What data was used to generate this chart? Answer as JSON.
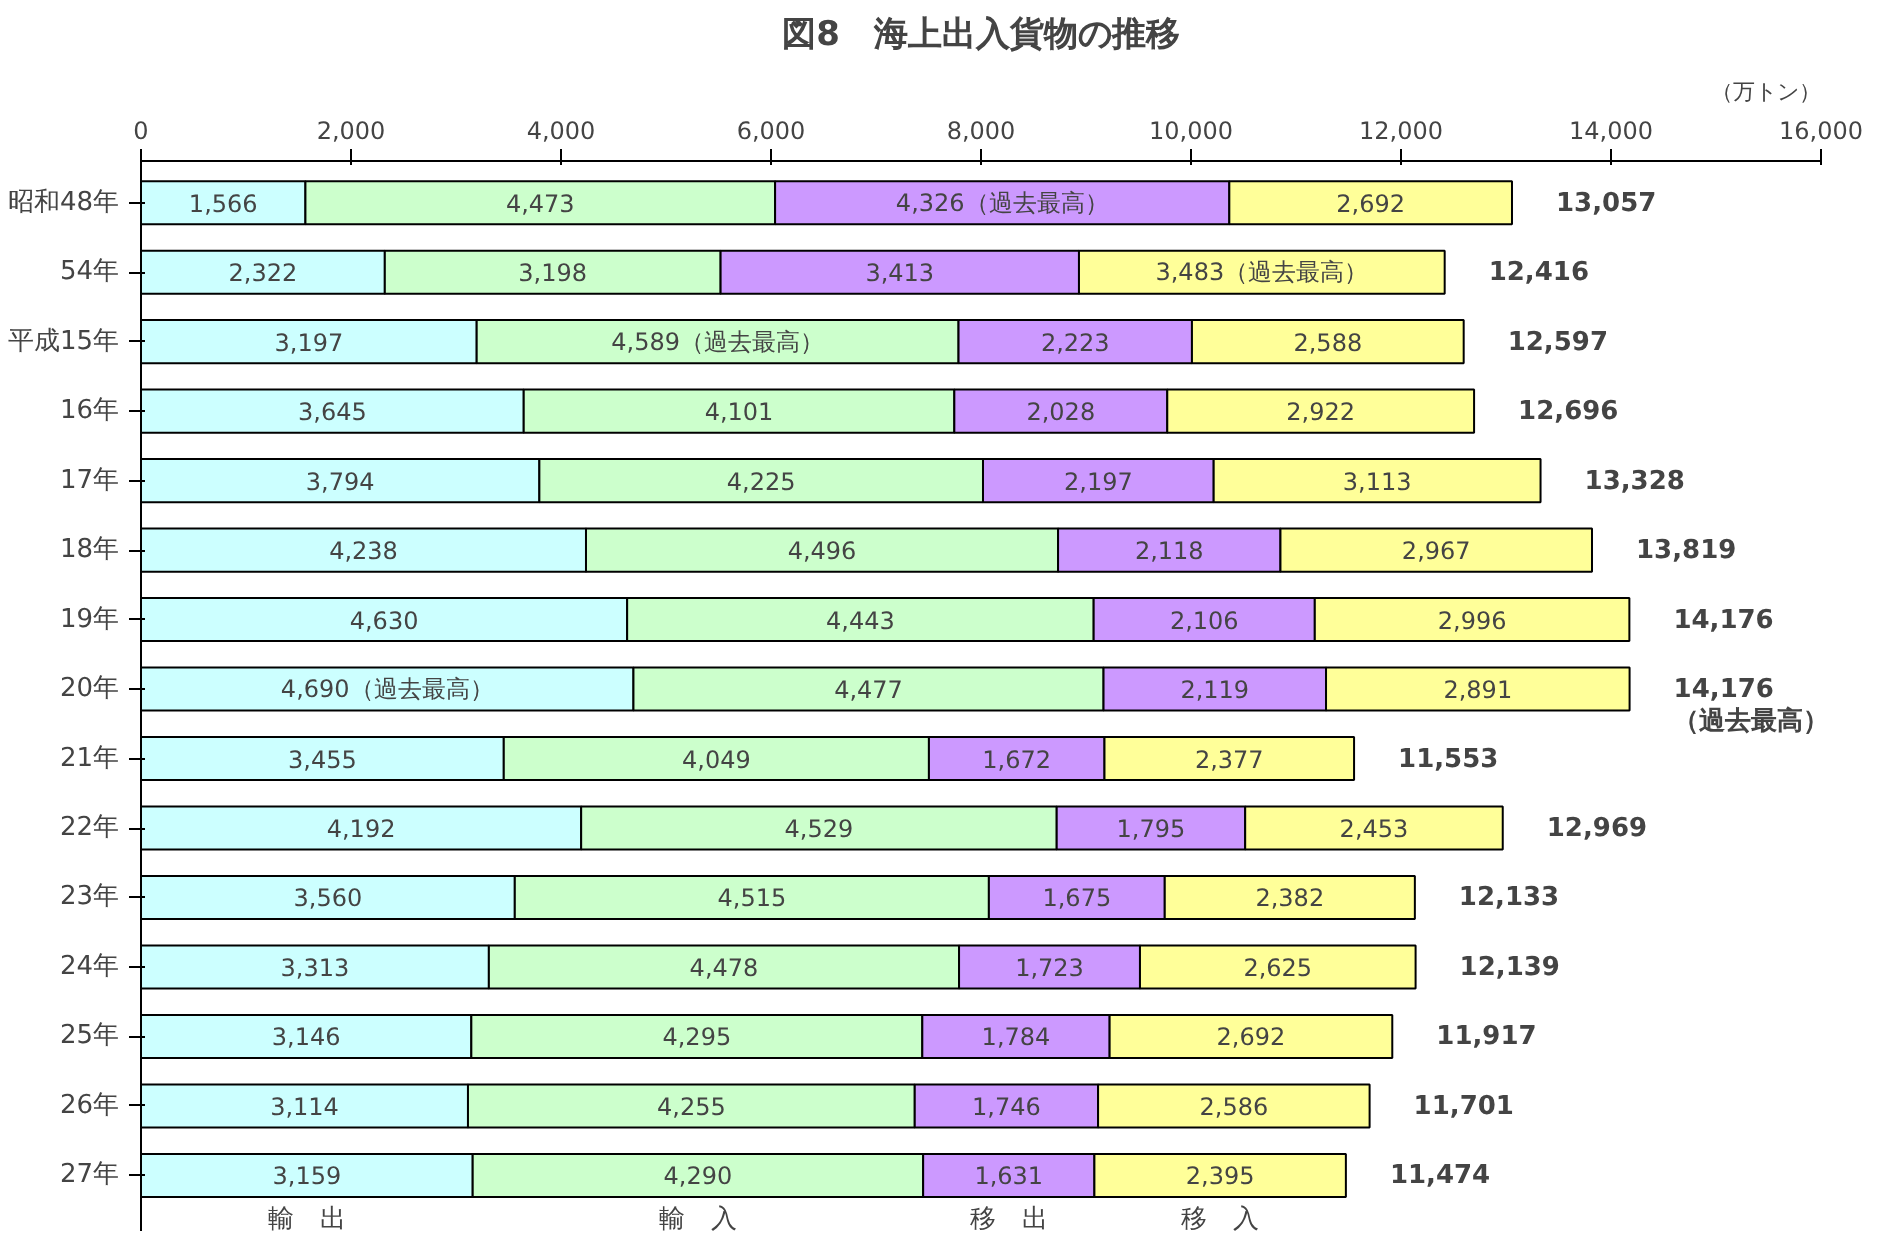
{
  "chart_data": {
    "type": "bar",
    "orientation": "horizontal",
    "stacked": true,
    "title": "図8　海上出入貨物の推移",
    "categories": [
      "昭和48年",
      "54年",
      "平成15年",
      "16年",
      "17年",
      "18年",
      "19年",
      "20年",
      "21年",
      "22年",
      "23年",
      "24年",
      "25年",
      "26年",
      "27年"
    ],
    "series": [
      {
        "name": "輸　出",
        "color": "#ccffff",
        "values": [
          1566,
          2322,
          3197,
          3645,
          3794,
          4238,
          4630,
          4690,
          3455,
          4192,
          3560,
          3313,
          3146,
          3114,
          3159
        ],
        "value_labels": [
          "1,566",
          "2,322",
          "3,197",
          "3,645",
          "3,794",
          "4,238",
          "4,630",
          "4,690（過去最高）",
          "3,455",
          "4,192",
          "3,560",
          "3,313",
          "3,146",
          "3,114",
          "3,159"
        ]
      },
      {
        "name": "輸　入",
        "color": "#ccffcc",
        "values": [
          4473,
          3198,
          4589,
          4101,
          4225,
          4496,
          4443,
          4477,
          4049,
          4529,
          4515,
          4478,
          4295,
          4255,
          4290
        ],
        "value_labels": [
          "4,473",
          "3,198",
          "4,589（過去最高）",
          "4,101",
          "4,225",
          "4,496",
          "4,443",
          "4,477",
          "4,049",
          "4,529",
          "4,515",
          "4,478",
          "4,295",
          "4,255",
          "4,290"
        ]
      },
      {
        "name": "移　出",
        "color": "#cc99ff",
        "values": [
          4326,
          3413,
          2223,
          2028,
          2197,
          2118,
          2106,
          2119,
          1672,
          1795,
          1675,
          1723,
          1784,
          1746,
          1631
        ],
        "value_labels": [
          "4,326（過去最高）",
          "3,413",
          "2,223",
          "2,028",
          "2,197",
          "2,118",
          "2,106",
          "2,119",
          "1,672",
          "1,795",
          "1,675",
          "1,723",
          "1,784",
          "1,746",
          "1,631"
        ]
      },
      {
        "name": "移　入",
        "color": "#ffff99",
        "values": [
          2692,
          3483,
          2588,
          2922,
          3113,
          2967,
          2996,
          2891,
          2377,
          2453,
          2382,
          2625,
          2692,
          2586,
          2395
        ],
        "value_labels": [
          "2,692",
          "3,483（過去最高）",
          "2,588",
          "2,922",
          "3,113",
          "2,967",
          "2,996",
          "2,891",
          "2,377",
          "2,453",
          "2,382",
          "2,625",
          "2,692",
          "2,586",
          "2,395"
        ]
      }
    ],
    "totals": [
      "13,057",
      "12,416",
      "12,597",
      "12,696",
      "13,328",
      "13,819",
      "14,176",
      "14,176",
      "11,553",
      "12,969",
      "12,133",
      "12,139",
      "11,917",
      "11,701",
      "11,474"
    ],
    "annotations": [
      "（万トン）",
      {
        "text": "（過去最高）",
        "x": 14176,
        "y": "20年"
      }
    ],
    "xlim": [
      0,
      16000
    ],
    "xticks": [
      0,
      {
        "value": 2000,
        "label": "2,000"
      },
      {
        "value": 4000,
        "label": "4,000"
      },
      {
        "value": 6000,
        "label": "6,000"
      },
      {
        "value": 8000,
        "label": "8,000"
      },
      {
        "value": 10000,
        "label": "10,000"
      },
      {
        "value": 12000,
        "label": "12,000"
      },
      {
        "value": 14000,
        "label": "14,000"
      },
      {
        "value": 16000,
        "label": "16,000"
      }
    ],
    "grid": false
  }
}
